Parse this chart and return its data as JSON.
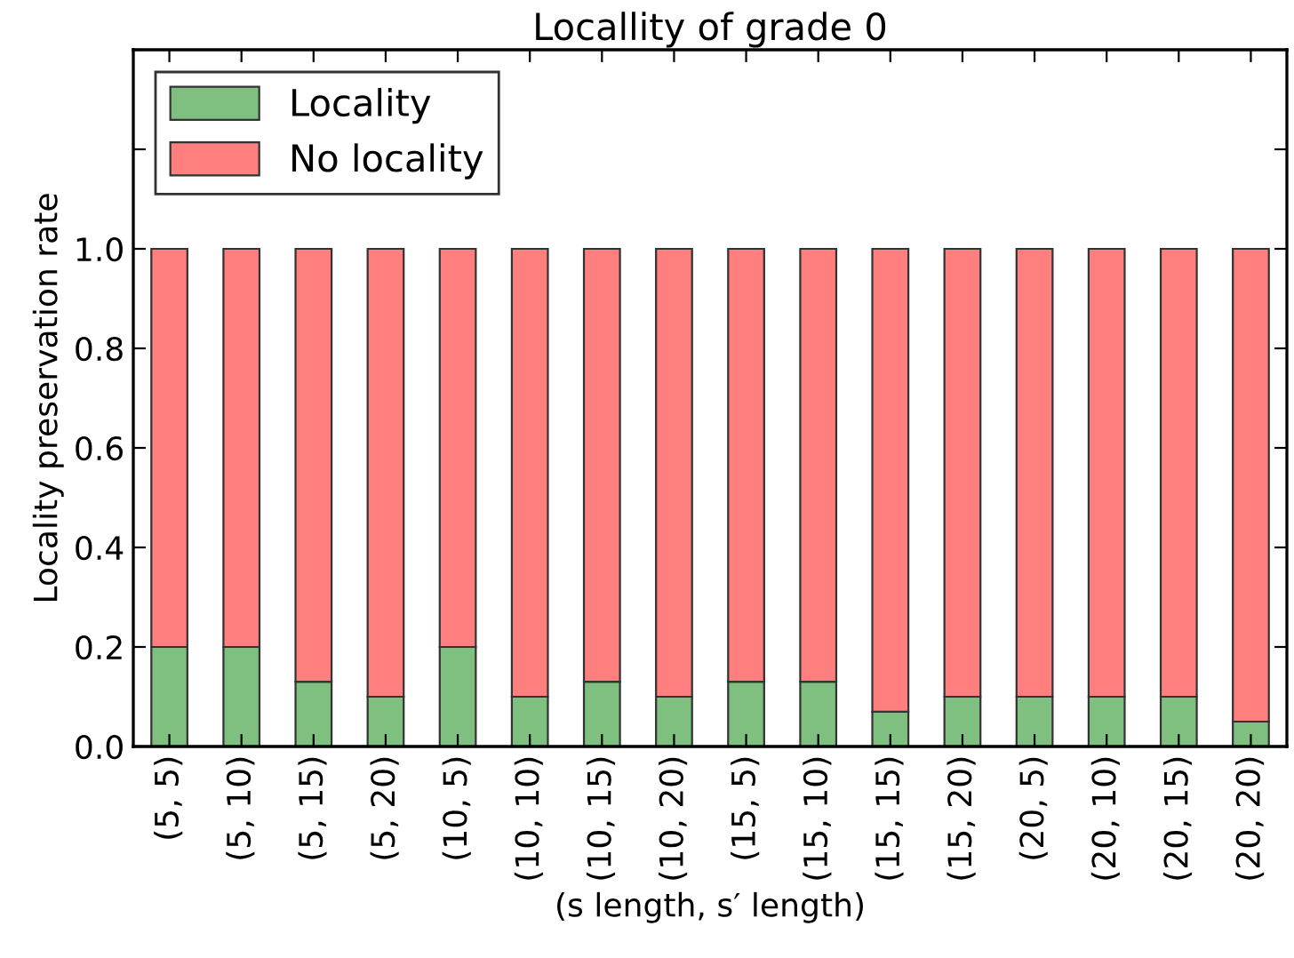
{
  "chart_data": {
    "type": "bar",
    "title": "Locallity of grade 0",
    "xlabel": "(s length, s′ length)",
    "ylabel": "Locality preservation rate",
    "categories": [
      "(5, 5)",
      "(5, 10)",
      "(5, 15)",
      "(5, 20)",
      "(10, 5)",
      "(10, 10)",
      "(10, 15)",
      "(10, 20)",
      "(15, 5)",
      "(15, 10)",
      "(15, 15)",
      "(15, 20)",
      "(20, 5)",
      "(20, 10)",
      "(20, 15)",
      "(20, 20)"
    ],
    "series": [
      {
        "name": "Locality",
        "color": "#7fbf7f",
        "values": [
          0.2,
          0.2,
          0.13,
          0.1,
          0.2,
          0.1,
          0.13,
          0.1,
          0.13,
          0.13,
          0.07,
          0.1,
          0.1,
          0.1,
          0.1,
          0.05
        ]
      },
      {
        "name": "No locality",
        "color": "#ff7f7f",
        "values": [
          0.8,
          0.8,
          0.87,
          0.9,
          0.8,
          0.9,
          0.87,
          0.9,
          0.87,
          0.87,
          0.93,
          0.9,
          0.9,
          0.9,
          0.9,
          0.95
        ]
      }
    ],
    "stacked": true,
    "ylim": [
      0,
      1.4
    ],
    "yticks": [
      {
        "value": 0,
        "label": "0.0"
      },
      0.2,
      0.4,
      0.6,
      0.8,
      {
        "value": 1,
        "label": "1.0"
      },
      {
        "value": 1.2,
        "label": null
      },
      {
        "value": 1.4,
        "label": null
      }
    ],
    "grid": false,
    "legend": "top left"
  }
}
